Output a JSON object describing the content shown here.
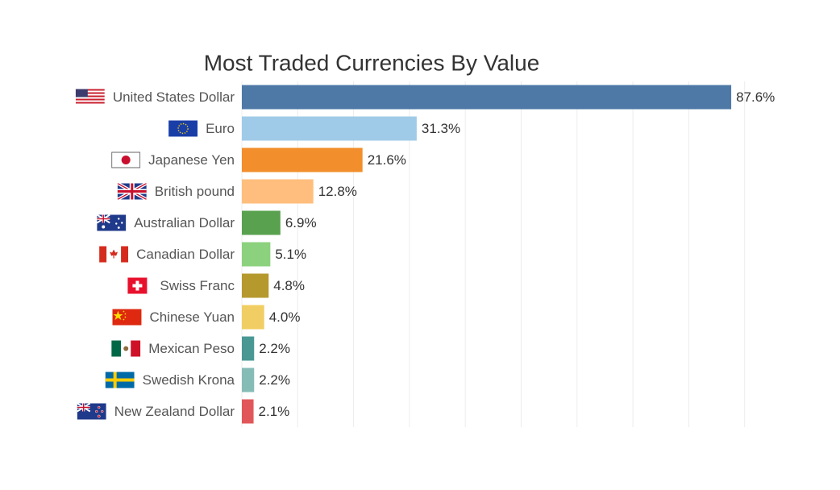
{
  "chart_data": {
    "type": "hbar",
    "title": "Most Traded Currencies By Value",
    "categories": [
      "United States Dollar",
      "Euro",
      "Japanese Yen",
      "British pound",
      "Australian Dollar",
      "Canadian Dollar",
      "Swiss Franc",
      "Chinese Yuan",
      "Mexican Peso",
      "Swedish Krona",
      "New Zealand Dollar"
    ],
    "values": [
      87.6,
      31.3,
      21.6,
      12.8,
      6.9,
      5.1,
      4.8,
      4.0,
      2.2,
      2.2,
      2.1
    ],
    "value_labels": [
      "87.6%",
      "31.3%",
      "21.6%",
      "12.8%",
      "6.9%",
      "5.1%",
      "4.8%",
      "4.0%",
      "2.2%",
      "2.2%",
      "2.1%"
    ],
    "colors": [
      "#4e79a7",
      "#a0cbe8",
      "#f28e2b",
      "#ffbe7d",
      "#59a14f",
      "#8cd17d",
      "#b6992d",
      "#f1ce63",
      "#499894",
      "#86bcb6",
      "#e15759"
    ],
    "xlim": [
      0,
      90
    ],
    "xticks": [
      0,
      10,
      20,
      30,
      40,
      50,
      60,
      70,
      80,
      90
    ],
    "grid": true
  }
}
